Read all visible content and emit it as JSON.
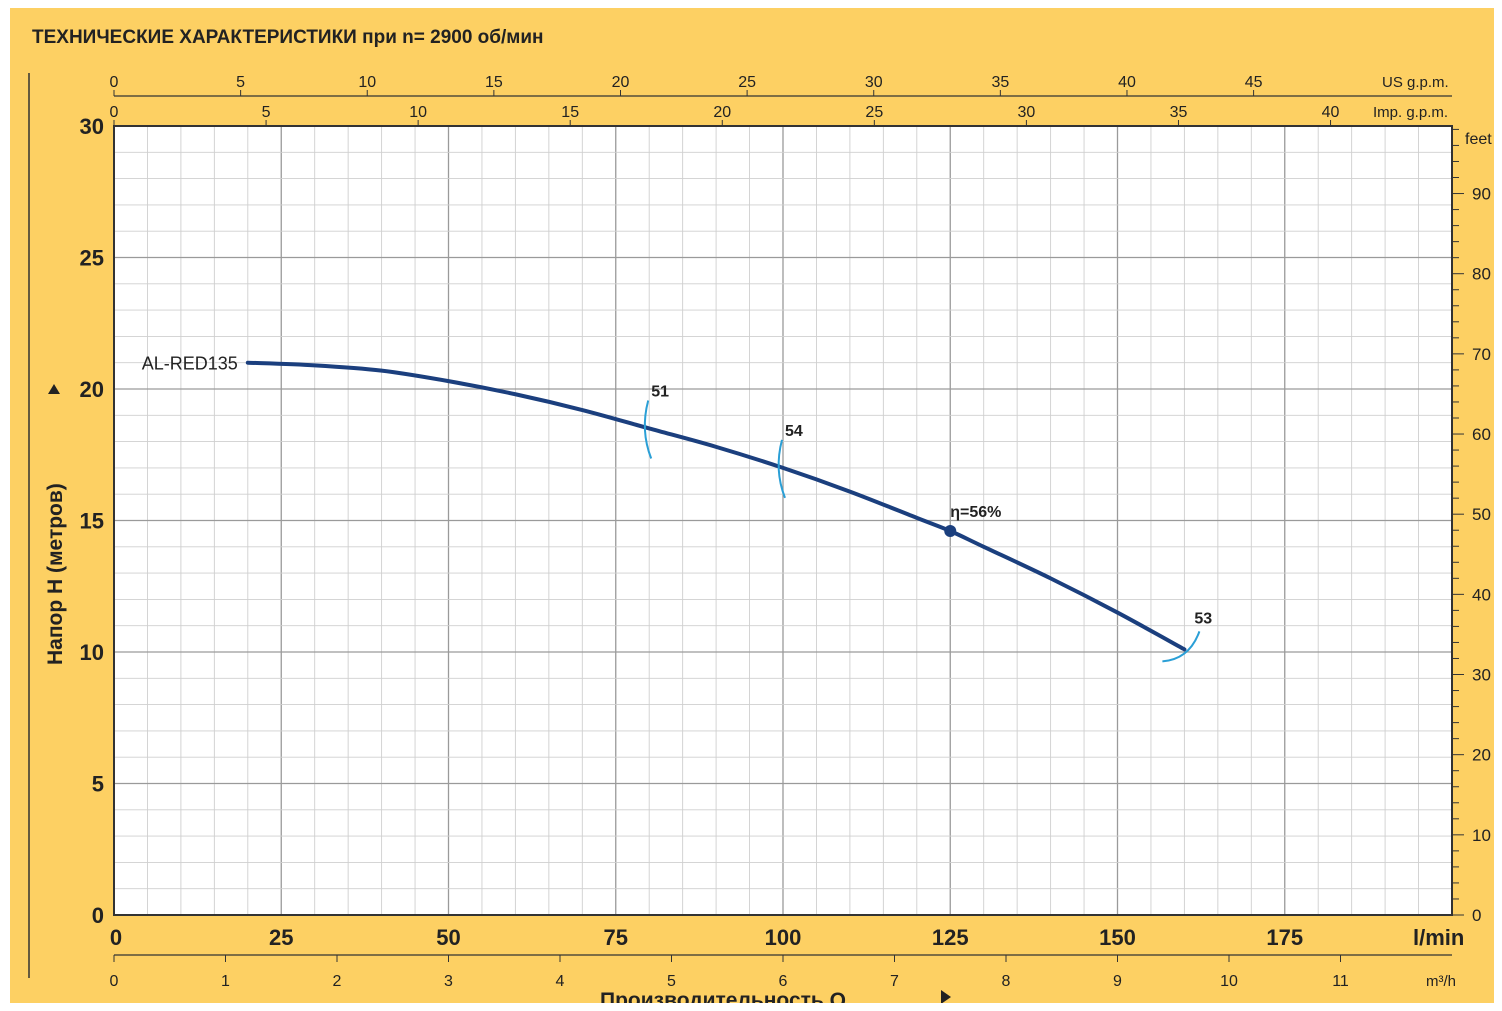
{
  "colors": {
    "background": "#fdd063",
    "plot_area": "#ffffff",
    "grid_major": "#9a9a9a",
    "grid_minor": "#cfcfcf",
    "curve": "#1b3f7e",
    "efficiency_marks": "#2a9fd6",
    "text": "#222222"
  },
  "chart_data": {
    "type": "line",
    "title": "ТЕХНИЧЕСКИЕ ХАРАКТЕРИСТИКИ при n= 2900 об/мин",
    "xlabel": "Производительность Q",
    "ylabel": "Напор H   (метров)",
    "xlim": [
      0,
      200
    ],
    "ylim": [
      0,
      30
    ],
    "grid": true,
    "x_unit": "l/min",
    "y_unit": "",
    "x_ticks": [
      0,
      25,
      50,
      75,
      100,
      125,
      150,
      175
    ],
    "y_ticks": [
      0,
      5,
      10,
      15,
      20,
      25,
      30
    ],
    "axes_secondary": {
      "top_us_gpm": {
        "unit": "US g.p.m.",
        "ticks": [
          0,
          5,
          10,
          15,
          20,
          25,
          30,
          35,
          40,
          45
        ]
      },
      "top_imp_gpm": {
        "unit": "Imp. g.p.m.",
        "ticks": [
          0,
          5,
          10,
          15,
          20,
          25,
          30,
          35,
          40
        ]
      },
      "right_feet": {
        "unit": "feet",
        "ticks": [
          0,
          10,
          20,
          30,
          40,
          50,
          60,
          70,
          80,
          90
        ]
      },
      "bottom_m3h": {
        "unit": "m³/h",
        "ticks": [
          0,
          1,
          2,
          3,
          4,
          5,
          6,
          7,
          8,
          9,
          10,
          11
        ]
      }
    },
    "series": [
      {
        "name": "AL-RED135",
        "x": [
          20,
          30,
          40,
          50,
          60,
          70,
          80,
          90,
          100,
          110,
          120,
          125,
          130,
          140,
          150,
          160
        ],
        "y": [
          21.0,
          20.9,
          20.7,
          20.3,
          19.8,
          19.2,
          18.5,
          17.8,
          17.0,
          16.1,
          15.1,
          14.6,
          14.0,
          12.8,
          11.5,
          10.1
        ]
      }
    ],
    "annotations": [
      {
        "text": "51",
        "x": 80,
        "y": 18.5
      },
      {
        "text": "54",
        "x": 100,
        "y": 17.0
      },
      {
        "text": "η=56%",
        "x": 125,
        "y": 14.6
      },
      {
        "text": "53",
        "x": 160,
        "y": 10.1
      }
    ]
  }
}
